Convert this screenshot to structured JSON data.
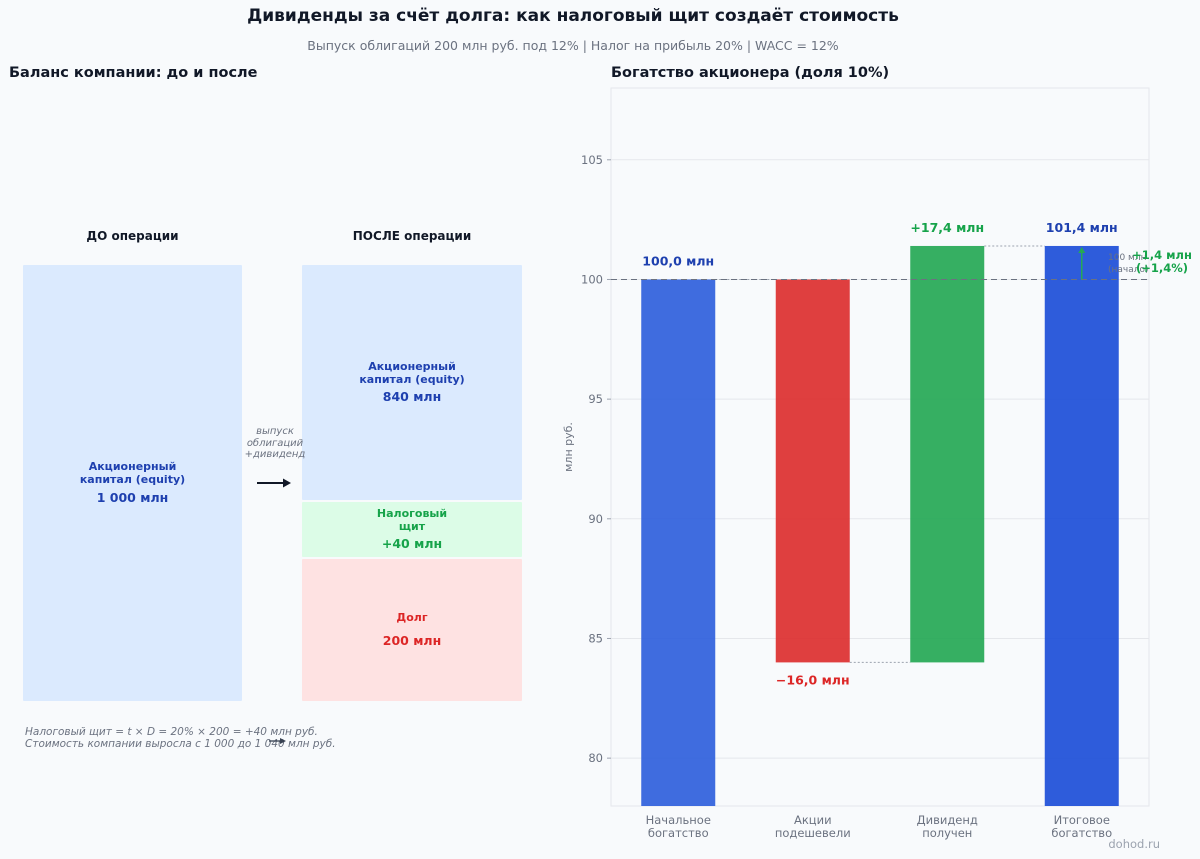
{
  "title": "Дивиденды за счёт долга: как налоговый щит создаёт стоимость",
  "subtitle": "Выпуск облигаций 200 млн руб. под 12%  |  Налог на прибыль 20%  |  WACC = 12%",
  "balance": {
    "title": "Баланс компании: до и после",
    "before_head": "ДО операции",
    "after_head": "ПОСЛЕ операции",
    "op_label_lines": [
      "выпуск",
      "облигаций",
      "+дивиденд"
    ],
    "before_equity": {
      "label_lines": [
        "Акционерный",
        "капитал (equity)"
      ],
      "value": "1 000 млн"
    },
    "after_equity": {
      "label_lines": [
        "Акционерный",
        "капитал (equity)"
      ],
      "value": "840 млн"
    },
    "shield": {
      "label_lines": [
        "Налоговый",
        "щит"
      ],
      "value": "+40 млн"
    },
    "debt": {
      "label_lines": [
        "Долг"
      ],
      "value": "200 млн"
    },
    "note_line1": "Налоговый щит = t × D = 20% × 200 = +40 млн руб.",
    "note_line2": "Стоимость компании выросла с 1 000 до 1 040 млн руб."
  },
  "colors": {
    "start": "#2f5fdc",
    "down": "#dc2f2f",
    "up": "#25a855",
    "final": "#1c4ed8",
    "label_blue": "#1e40af",
    "label_red": "#dc2626",
    "label_green": "#16a34a"
  },
  "chart_data": {
    "type": "bar",
    "title": "Богатство акционера (доля 10%)",
    "ylabel": "млн руб.",
    "ylim": [
      78,
      108
    ],
    "yticks": [
      80,
      85,
      90,
      95,
      100,
      105
    ],
    "grid": true,
    "reference_line": 100,
    "categories": [
      [
        "Начальное",
        "богатство"
      ],
      [
        "Акции",
        "подешевели"
      ],
      [
        "Дивиденд",
        "получен"
      ],
      [
        "Итоговое",
        "богатство"
      ]
    ],
    "bars": [
      {
        "kind": "start",
        "from": 0,
        "to": 100.0,
        "label": "100,0 млн"
      },
      {
        "kind": "down",
        "from": 100.0,
        "to": 84.0,
        "label": "−16,0 млн"
      },
      {
        "kind": "up",
        "from": 84.0,
        "to": 101.4,
        "label": "+17,4 млн"
      },
      {
        "kind": "final",
        "from": 0,
        "to": 101.4,
        "label": "101,4 млн"
      }
    ],
    "annotation": {
      "from": 100.0,
      "to": 101.4,
      "gain_lines": [
        "+1,4 млн",
        "(+1,4%)"
      ],
      "ref_lines": [
        "100 млн",
        "(начало)"
      ]
    }
  },
  "watermark": "dohod.ru"
}
